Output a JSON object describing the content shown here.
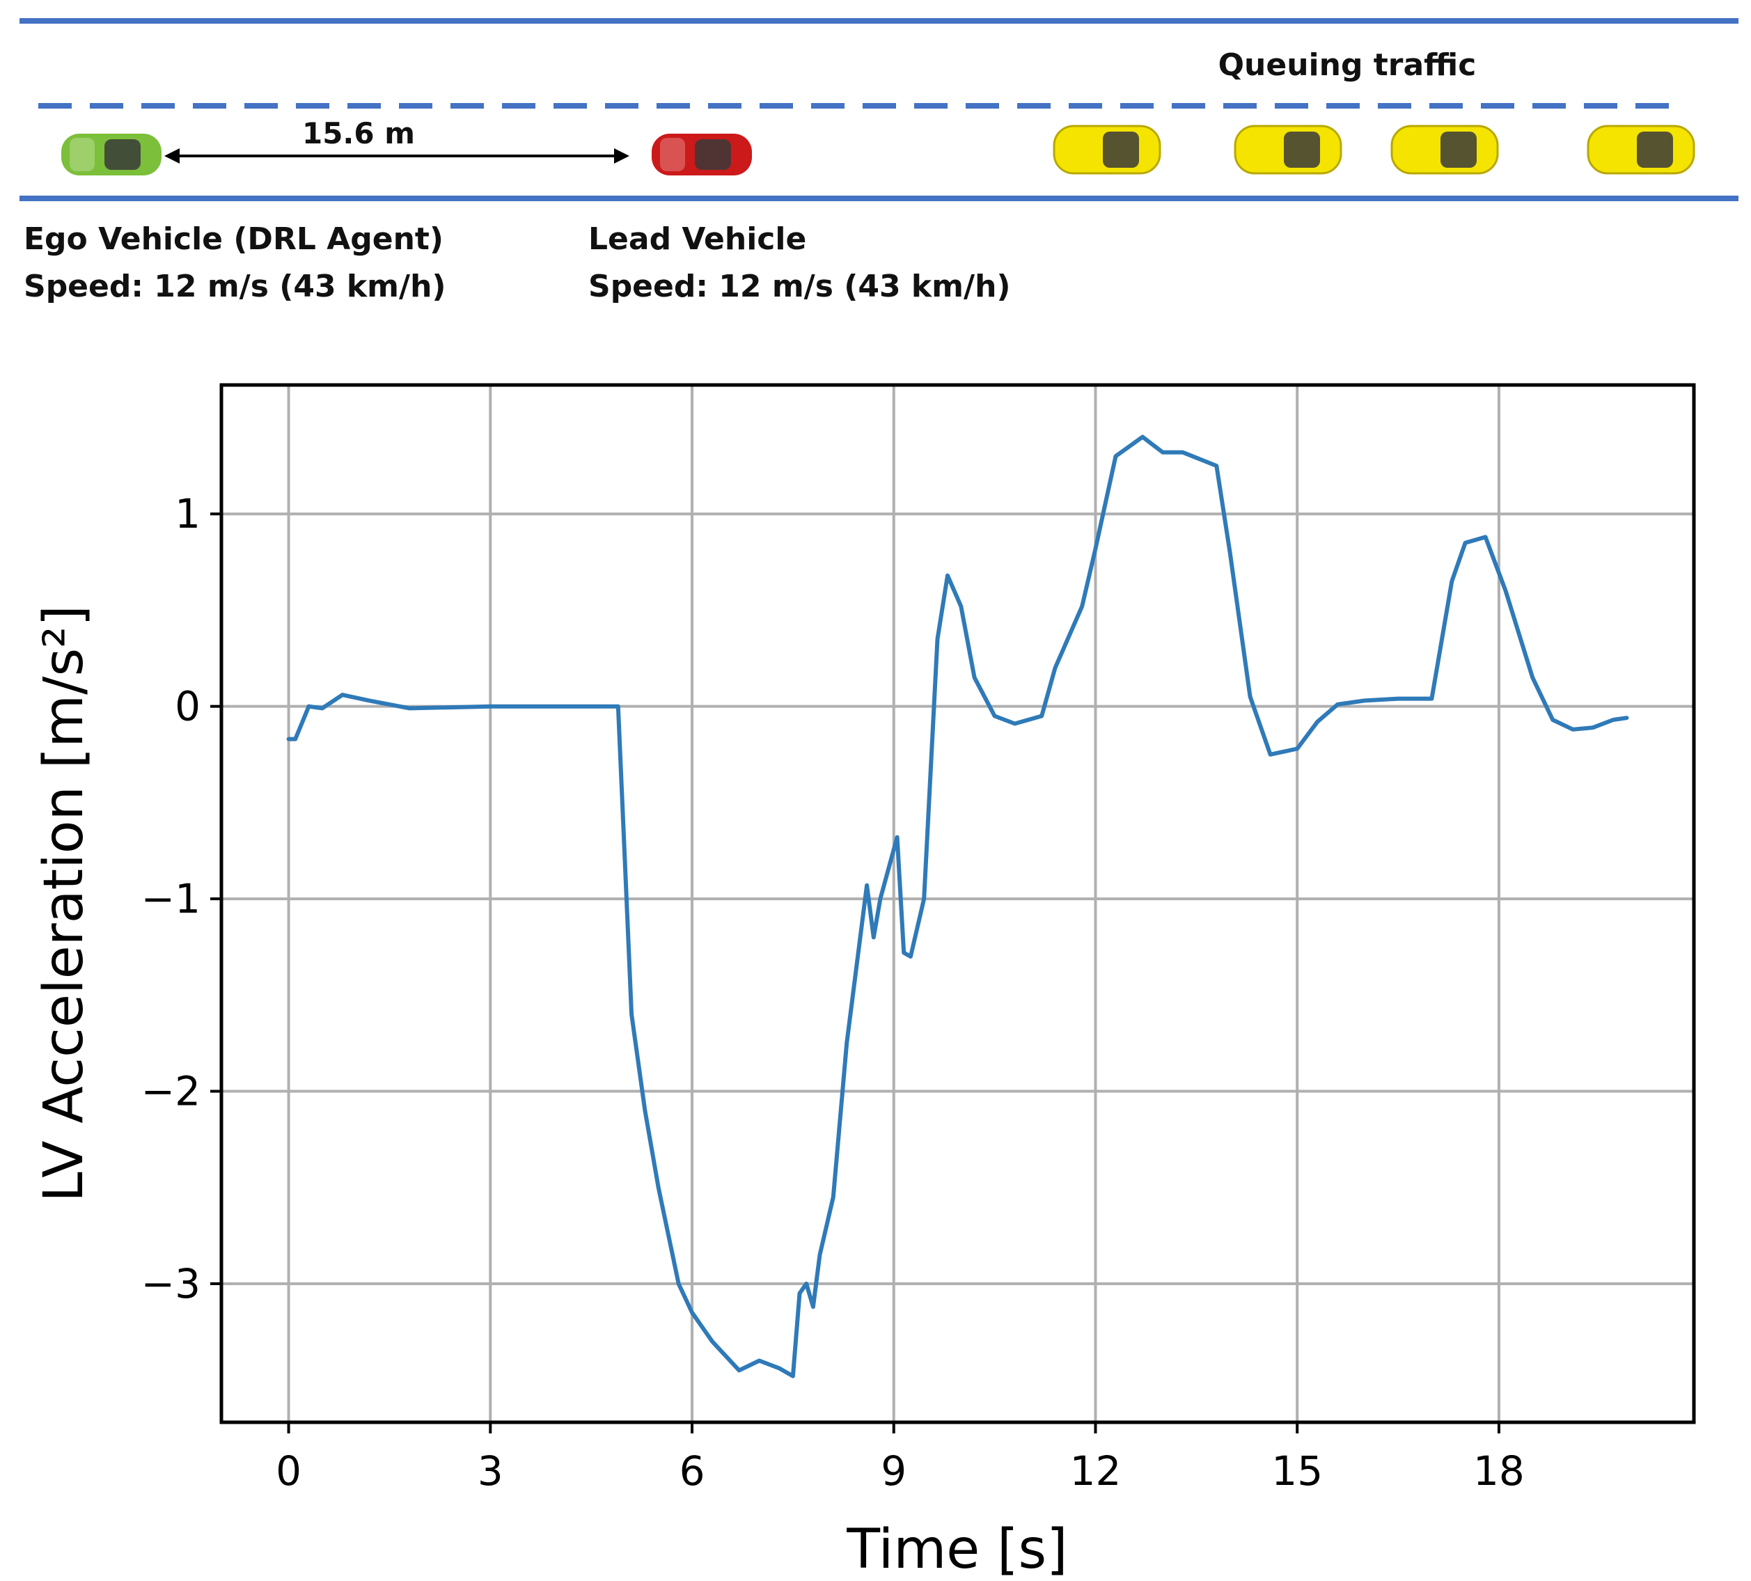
{
  "scene": {
    "queue_label": "Queuing traffic",
    "gap_label": "15.6 m",
    "ego": {
      "title": "Ego Vehicle (DRL Agent)",
      "speed": "Speed: 12 m/s (43 km/h)",
      "color": "#7cbf3a"
    },
    "lead": {
      "title": "Lead Vehicle",
      "speed": "Speed: 12 m/s (43 km/h)",
      "color": "#cc1a1a"
    },
    "queue_color": "#f5e400",
    "lane_color": "#4472c4",
    "queue_count": 4
  },
  "chart_data": {
    "type": "line",
    "xlabel": "Time [s]",
    "ylabel": "LV Acceleration [m/s²]",
    "xlim": [
      -1,
      20.9
    ],
    "ylim": [
      -3.72,
      1.67
    ],
    "xticks": [
      0,
      3,
      6,
      9,
      12,
      15,
      18
    ],
    "yticks": [
      1,
      0,
      -1,
      -2,
      -3
    ],
    "xtick_labels": [
      "0",
      "3",
      "6",
      "9",
      "12",
      "15",
      "18"
    ],
    "ytick_labels": [
      "1",
      "0",
      "−1",
      "−2",
      "−3"
    ],
    "grid": true,
    "line_color": "#2f7ab8",
    "series": [
      {
        "x": [
          0,
          0.1,
          0.3,
          0.5,
          0.8,
          1.2,
          1.8,
          3,
          4.5,
          4.9,
          5.0,
          5.1,
          5.3,
          5.5,
          5.8,
          6.0,
          6.3,
          6.7,
          7.0,
          7.3,
          7.5,
          7.6,
          7.7,
          7.8,
          7.9,
          8.1,
          8.3,
          8.6,
          8.7,
          8.8,
          9.05,
          9.15,
          9.25,
          9.45,
          9.65,
          9.8,
          10.0,
          10.2,
          10.5,
          10.8,
          11.2,
          11.4,
          11.8,
          12.0,
          12.3,
          12.7,
          13.0,
          13.3,
          13.8,
          14.0,
          14.3,
          14.6,
          15.0,
          15.3,
          15.6,
          16.0,
          16.5,
          17.0,
          17.3,
          17.5,
          17.8,
          18.1,
          18.5,
          18.8,
          19.1,
          19.4,
          19.7,
          19.9
        ],
        "y": [
          -0.17,
          -0.17,
          0.0,
          -0.01,
          0.06,
          0.03,
          -0.01,
          0.0,
          0.0,
          0.0,
          -0.8,
          -1.6,
          -2.1,
          -2.5,
          -3.0,
          -3.15,
          -3.3,
          -3.45,
          -3.4,
          -3.44,
          -3.48,
          -3.05,
          -3.0,
          -3.12,
          -2.85,
          -2.55,
          -1.75,
          -0.93,
          -1.2,
          -1.0,
          -0.68,
          -1.28,
          -1.3,
          -1.0,
          0.35,
          0.68,
          0.52,
          0.15,
          -0.05,
          -0.09,
          -0.05,
          0.2,
          0.52,
          0.82,
          1.3,
          1.4,
          1.32,
          1.32,
          1.25,
          0.8,
          0.05,
          -0.25,
          -0.22,
          -0.08,
          0.01,
          0.03,
          0.04,
          0.04,
          0.65,
          0.85,
          0.88,
          0.6,
          0.15,
          -0.07,
          -0.12,
          -0.11,
          -0.07,
          -0.06
        ]
      }
    ]
  }
}
